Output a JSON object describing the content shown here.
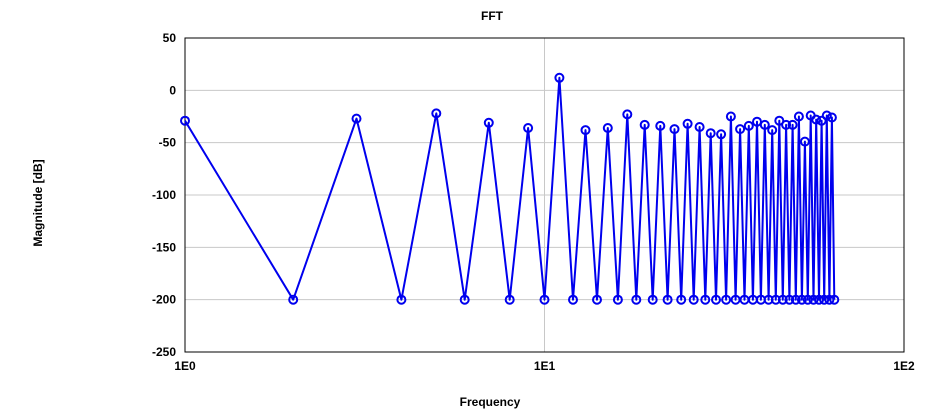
{
  "chart_data": {
    "type": "line",
    "title": "FFT",
    "xlabel": "Frequency",
    "ylabel": "Magnitude [dB]",
    "x_scale": "log",
    "xlim": [
      1,
      100
    ],
    "ylim": [
      -250,
      50
    ],
    "x_ticks": [
      {
        "value": 1,
        "label": "1E0"
      },
      {
        "value": 10,
        "label": "1E1"
      },
      {
        "value": 100,
        "label": "1E2"
      }
    ],
    "y_ticks": [
      {
        "value": 50,
        "label": "50"
      },
      {
        "value": 0,
        "label": "0"
      },
      {
        "value": -50,
        "label": "-50"
      },
      {
        "value": -100,
        "label": "-100"
      },
      {
        "value": -150,
        "label": "-150"
      },
      {
        "value": -200,
        "label": "-200"
      },
      {
        "value": -250,
        "label": "-250"
      }
    ],
    "grid": true,
    "legend": "none",
    "series": [
      {
        "color": "#0000ee",
        "marker": "circle",
        "x": [
          1,
          2,
          3,
          4,
          5,
          6,
          7,
          8,
          9,
          10,
          11,
          12,
          13,
          14,
          15,
          16,
          17,
          18,
          19,
          20,
          21,
          22,
          23,
          24,
          25,
          26,
          27,
          28,
          29,
          30,
          31,
          32,
          33,
          34,
          35,
          36,
          37,
          38,
          39,
          40,
          41,
          42,
          43,
          44,
          45,
          46,
          47,
          48,
          49,
          50,
          51,
          52,
          53,
          54,
          55,
          56,
          57,
          58,
          59,
          60,
          61,
          62,
          63,
          64
        ],
        "y": [
          -29,
          -200,
          -27,
          -200,
          -22,
          -200,
          -31,
          -200,
          -36,
          -200,
          12,
          -200,
          -38,
          -200,
          -36,
          -200,
          -23,
          -200,
          -33,
          -200,
          -34,
          -200,
          -37,
          -200,
          -32,
          -200,
          -35,
          -200,
          -41,
          -200,
          -42,
          -200,
          -25,
          -200,
          -37,
          -200,
          -34,
          -200,
          -30,
          -200,
          -33,
          -200,
          -38,
          -200,
          -29,
          -200,
          -33,
          -200,
          -33,
          -200,
          -25,
          -200,
          -49,
          -200,
          -24,
          -200,
          -28,
          -200,
          -29,
          -200,
          -24,
          -200,
          -26,
          -200
        ]
      }
    ]
  }
}
